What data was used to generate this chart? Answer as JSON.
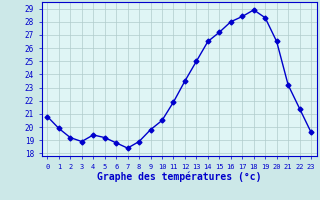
{
  "hours": [
    0,
    1,
    2,
    3,
    4,
    5,
    6,
    7,
    8,
    9,
    10,
    11,
    12,
    13,
    14,
    15,
    16,
    17,
    18,
    19,
    20,
    21,
    22,
    23
  ],
  "temps": [
    20.8,
    19.9,
    19.2,
    18.9,
    19.4,
    19.2,
    18.8,
    18.4,
    18.9,
    19.8,
    20.5,
    21.9,
    23.5,
    25.0,
    26.5,
    27.2,
    28.0,
    28.4,
    28.9,
    28.3,
    26.5,
    23.2,
    21.4,
    19.6
  ],
  "line_color": "#0000cc",
  "marker": "D",
  "marker_size": 2.5,
  "bg_color": "#cce8e8",
  "plot_bg_color": "#dff5f5",
  "grid_color": "#b0cccc",
  "xlabel": "Graphe des températures (°c)",
  "xlabel_color": "#0000cc",
  "tick_color": "#0000cc",
  "ylim": [
    17.8,
    29.5
  ],
  "yticks": [
    18,
    19,
    20,
    21,
    22,
    23,
    24,
    25,
    26,
    27,
    28,
    29
  ],
  "xlim": [
    -0.5,
    23.5
  ],
  "xtick_labels": [
    "0",
    "1",
    "2",
    "3",
    "4",
    "5",
    "6",
    "7",
    "8",
    "9",
    "10",
    "11",
    "12",
    "13",
    "14",
    "15",
    "16",
    "17",
    "18",
    "19",
    "20",
    "21",
    "22",
    "23"
  ]
}
